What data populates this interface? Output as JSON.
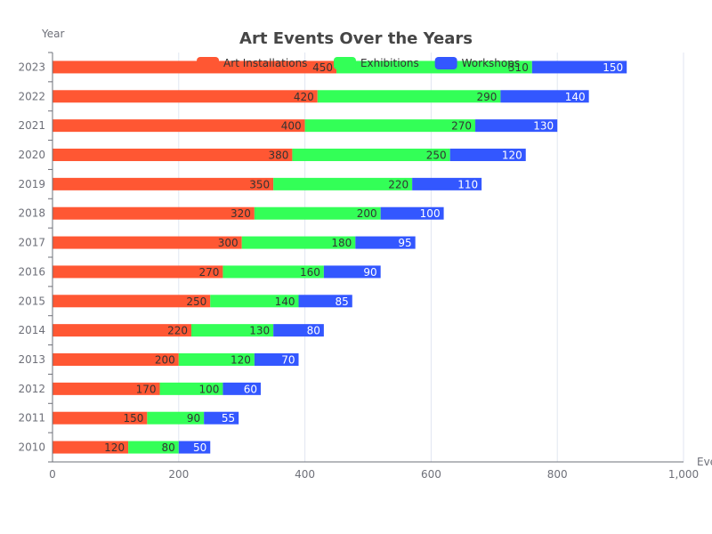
{
  "chart_data": {
    "type": "bar",
    "orientation": "horizontal",
    "stacked": true,
    "title": "Art Events Over the Years",
    "ylabel": "Year",
    "xlabel": "Eve",
    "xlim": [
      0,
      1000
    ],
    "xticks": [
      "0",
      "200",
      "400",
      "600",
      "800",
      "1,000"
    ],
    "grid": true,
    "legend_position": "top",
    "categories": [
      "2010",
      "2011",
      "2012",
      "2013",
      "2014",
      "2015",
      "2016",
      "2017",
      "2018",
      "2019",
      "2020",
      "2021",
      "2022",
      "2023"
    ],
    "series": [
      {
        "name": "Art Installations",
        "color": "#ff5733",
        "label_color": "#333333",
        "values": [
          120,
          150,
          170,
          200,
          220,
          250,
          270,
          300,
          320,
          350,
          380,
          400,
          420,
          450
        ]
      },
      {
        "name": "Exhibitions",
        "color": "#33ff57",
        "label_color": "#333333",
        "values": [
          80,
          90,
          100,
          120,
          130,
          140,
          160,
          180,
          200,
          220,
          250,
          270,
          290,
          310
        ]
      },
      {
        "name": "Workshops",
        "color": "#3357ff",
        "label_color": "#ffffff",
        "values": [
          50,
          55,
          60,
          70,
          80,
          85,
          90,
          95,
          100,
          110,
          120,
          130,
          140,
          150
        ]
      }
    ]
  }
}
